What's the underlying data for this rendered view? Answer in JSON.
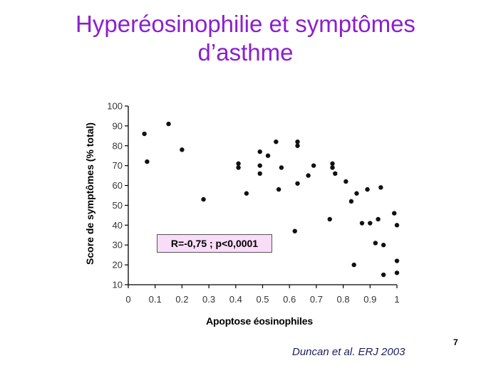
{
  "slide": {
    "title_line1": "Hyperéosinophilie et symptômes",
    "title_line2": "d’asthme",
    "title_color": "#8b1fcf",
    "page_number": "7",
    "citation": "Duncan et al. ERJ 2003",
    "citation_color": "#1a1d5c"
  },
  "chart_data": {
    "type": "scatter",
    "xlabel": "Apoptose éosinophiles",
    "ylabel": "Score de symptômes (% total)",
    "xlim": [
      0,
      1
    ],
    "ylim": [
      10,
      100
    ],
    "xticks": [
      0,
      0.1,
      0.2,
      0.3,
      0.4,
      0.5,
      0.6,
      0.7,
      0.8,
      0.9,
      1
    ],
    "xtick_labels": [
      "0",
      "0.1",
      "0.2",
      "0.3",
      "0.4",
      "0.5",
      "0.6",
      "0.7",
      "0.8",
      "0.9",
      "1"
    ],
    "yticks": [
      10,
      20,
      30,
      40,
      50,
      60,
      70,
      80,
      90,
      100
    ],
    "ytick_labels": [
      "10",
      "20",
      "30",
      "40",
      "50",
      "60",
      "70",
      "80",
      "90",
      "100"
    ],
    "grid": false,
    "annotation": "R=-0,75 ; p<0,0001",
    "annotation_bg": "#f9dcf7",
    "marker_color": "#111111",
    "points": [
      [
        0.06,
        86
      ],
      [
        0.07,
        72
      ],
      [
        0.15,
        91
      ],
      [
        0.2,
        78
      ],
      [
        0.28,
        53
      ],
      [
        0.41,
        71
      ],
      [
        0.41,
        69
      ],
      [
        0.44,
        56
      ],
      [
        0.49,
        77
      ],
      [
        0.49,
        70
      ],
      [
        0.49,
        66
      ],
      [
        0.52,
        75
      ],
      [
        0.55,
        82
      ],
      [
        0.56,
        58
      ],
      [
        0.57,
        69
      ],
      [
        0.62,
        37
      ],
      [
        0.63,
        82
      ],
      [
        0.63,
        80
      ],
      [
        0.63,
        61
      ],
      [
        0.67,
        65
      ],
      [
        0.69,
        70
      ],
      [
        0.75,
        43
      ],
      [
        0.76,
        71
      ],
      [
        0.76,
        69
      ],
      [
        0.77,
        66
      ],
      [
        0.81,
        62
      ],
      [
        0.83,
        52
      ],
      [
        0.84,
        20
      ],
      [
        0.85,
        56
      ],
      [
        0.87,
        41
      ],
      [
        0.89,
        58
      ],
      [
        0.9,
        41
      ],
      [
        0.92,
        31
      ],
      [
        0.93,
        43
      ],
      [
        0.94,
        59
      ],
      [
        0.95,
        30
      ],
      [
        0.95,
        15
      ],
      [
        0.99,
        46
      ],
      [
        1.0,
        40
      ],
      [
        1.0,
        22
      ],
      [
        1.0,
        16
      ]
    ]
  }
}
